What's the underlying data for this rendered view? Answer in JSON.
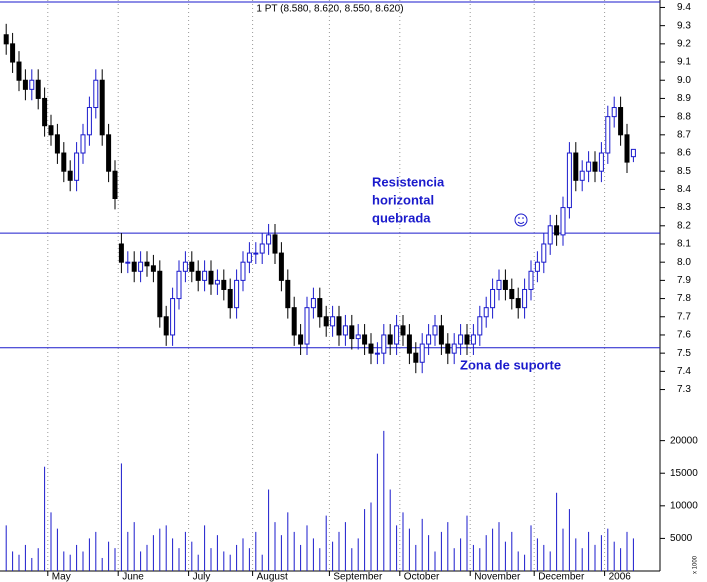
{
  "chart_data": {
    "type": "candlestick",
    "title": "1 PT (8.580, 8.620, 8.550, 8.620)",
    "annotations": [
      "Resistencia",
      "horizontal",
      "quebrada",
      "Zona de suporte"
    ],
    "volume_unit": "x 1000",
    "categories": [
      null,
      null,
      null,
      null,
      null,
      null,
      null,
      "May",
      null,
      null,
      null,
      null,
      null,
      null,
      null,
      null,
      null,
      null,
      "June",
      null,
      null,
      null,
      null,
      null,
      null,
      null,
      null,
      null,
      null,
      "July",
      null,
      null,
      null,
      null,
      null,
      null,
      null,
      null,
      null,
      "August",
      null,
      null,
      null,
      null,
      null,
      null,
      null,
      null,
      null,
      null,
      null,
      "September",
      null,
      null,
      null,
      null,
      null,
      null,
      null,
      null,
      null,
      null,
      "October",
      null,
      null,
      null,
      null,
      null,
      null,
      null,
      null,
      null,
      null,
      "November",
      null,
      null,
      null,
      null,
      null,
      null,
      null,
      null,
      null,
      "December",
      null,
      null,
      null,
      null,
      null,
      null,
      null,
      null,
      null,
      null,
      "2006",
      null,
      null,
      null,
      null
    ],
    "open": [
      9.25,
      9.2,
      9.1,
      9.0,
      8.95,
      9.0,
      8.9,
      8.75,
      8.7,
      8.6,
      8.5,
      8.45,
      8.6,
      8.7,
      8.85,
      9.0,
      8.7,
      8.5,
      8.1,
      8.0,
      8.0,
      7.95,
      8.0,
      7.98,
      7.95,
      7.7,
      7.6,
      7.8,
      7.95,
      8.0,
      7.95,
      7.9,
      7.95,
      7.88,
      7.9,
      7.85,
      7.75,
      7.9,
      8.0,
      8.05,
      8.05,
      8.1,
      8.15,
      8.05,
      7.9,
      7.75,
      7.6,
      7.55,
      7.75,
      7.8,
      7.7,
      7.65,
      7.7,
      7.6,
      7.65,
      7.58,
      7.6,
      7.55,
      7.5,
      7.5,
      7.6,
      7.55,
      7.65,
      7.6,
      7.5,
      7.45,
      7.55,
      7.6,
      7.65,
      7.55,
      7.5,
      7.55,
      7.6,
      7.55,
      7.6,
      7.7,
      7.75,
      7.85,
      7.9,
      7.85,
      7.8,
      7.75,
      7.85,
      7.95,
      8.0,
      8.1,
      8.2,
      8.15,
      8.3,
      8.6,
      8.45,
      8.5,
      8.55,
      8.5,
      8.6,
      8.8,
      8.85,
      8.7,
      8.58
    ],
    "high": [
      9.31,
      9.26,
      9.16,
      9.06,
      9.06,
      9.06,
      8.96,
      8.81,
      8.76,
      8.66,
      8.56,
      8.66,
      8.76,
      8.91,
      9.06,
      9.06,
      8.76,
      8.56,
      8.16,
      8.06,
      8.06,
      8.06,
      8.06,
      8.04,
      8.01,
      7.76,
      7.86,
      8.01,
      8.06,
      8.06,
      8.01,
      8.01,
      8.01,
      7.96,
      7.96,
      7.91,
      7.96,
      8.06,
      8.11,
      8.11,
      8.16,
      8.21,
      8.21,
      8.11,
      7.96,
      7.81,
      7.66,
      7.81,
      7.86,
      7.86,
      7.76,
      7.76,
      7.76,
      7.71,
      7.71,
      7.66,
      7.66,
      7.61,
      7.56,
      7.66,
      7.66,
      7.71,
      7.71,
      7.66,
      7.56,
      7.61,
      7.66,
      7.71,
      7.71,
      7.61,
      7.61,
      7.66,
      7.66,
      7.66,
      7.76,
      7.81,
      7.91,
      7.96,
      7.96,
      7.91,
      7.86,
      7.91,
      8.01,
      8.06,
      8.16,
      8.26,
      8.26,
      8.36,
      8.66,
      8.66,
      8.56,
      8.61,
      8.61,
      8.66,
      8.86,
      8.91,
      8.91,
      8.76,
      8.62
    ],
    "low": [
      9.14,
      9.04,
      8.94,
      8.89,
      8.89,
      8.84,
      8.69,
      8.64,
      8.54,
      8.44,
      8.39,
      8.39,
      8.54,
      8.64,
      8.79,
      8.64,
      8.44,
      8.29,
      7.94,
      7.94,
      7.89,
      7.89,
      7.92,
      7.89,
      7.64,
      7.54,
      7.54,
      7.74,
      7.89,
      7.89,
      7.84,
      7.84,
      7.82,
      7.82,
      7.79,
      7.69,
      7.69,
      7.84,
      7.94,
      7.99,
      7.99,
      8.04,
      7.99,
      7.84,
      7.69,
      7.54,
      7.49,
      7.49,
      7.69,
      7.64,
      7.59,
      7.59,
      7.54,
      7.54,
      7.52,
      7.52,
      7.49,
      7.44,
      7.44,
      7.44,
      7.49,
      7.49,
      7.54,
      7.44,
      7.39,
      7.39,
      7.49,
      7.54,
      7.49,
      7.44,
      7.44,
      7.49,
      7.49,
      7.49,
      7.54,
      7.64,
      7.69,
      7.79,
      7.79,
      7.74,
      7.69,
      7.69,
      7.79,
      7.89,
      7.94,
      8.04,
      8.09,
      8.09,
      8.24,
      8.39,
      8.39,
      8.44,
      8.44,
      8.44,
      8.54,
      8.74,
      8.64,
      8.49,
      8.55
    ],
    "close": [
      9.2,
      9.1,
      9.0,
      8.95,
      9.0,
      8.9,
      8.75,
      8.7,
      8.6,
      8.5,
      8.45,
      8.6,
      8.7,
      8.85,
      9.0,
      8.7,
      8.5,
      8.35,
      8.0,
      8.0,
      7.95,
      8.0,
      7.98,
      7.95,
      7.7,
      7.6,
      7.8,
      7.95,
      8.0,
      7.95,
      7.9,
      7.95,
      7.88,
      7.9,
      7.85,
      7.75,
      7.9,
      8.0,
      8.05,
      8.05,
      8.1,
      8.15,
      8.05,
      7.9,
      7.75,
      7.6,
      7.55,
      7.75,
      7.8,
      7.7,
      7.65,
      7.7,
      7.6,
      7.65,
      7.58,
      7.6,
      7.55,
      7.5,
      7.5,
      7.6,
      7.55,
      7.65,
      7.6,
      7.5,
      7.45,
      7.55,
      7.6,
      7.65,
      7.55,
      7.5,
      7.55,
      7.6,
      7.55,
      7.6,
      7.7,
      7.75,
      7.85,
      7.9,
      7.85,
      7.8,
      7.75,
      7.85,
      7.95,
      8.0,
      8.1,
      8.2,
      8.15,
      8.3,
      8.6,
      8.45,
      8.5,
      8.55,
      8.5,
      8.6,
      8.8,
      8.85,
      8.7,
      8.55,
      8.62
    ],
    "volume": [
      7000,
      3000,
      2500,
      4000,
      2000,
      3500,
      16000,
      9000,
      6500,
      3000,
      2500,
      4000,
      3000,
      5000,
      6000,
      2000,
      4500,
      3500,
      16500,
      6000,
      7500,
      3000,
      4000,
      5500,
      6500,
      7000,
      5000,
      3500,
      6000,
      4500,
      2500,
      7000,
      3500,
      5500,
      3000,
      2500,
      4000,
      5000,
      3500,
      6000,
      2500,
      12500,
      7500,
      5500,
      9000,
      6000,
      4000,
      7000,
      5000,
      3500,
      8500,
      4500,
      6000,
      7500,
      3500,
      5000,
      9500,
      10500,
      18000,
      21500,
      12500,
      7000,
      9000,
      6500,
      4000,
      8000,
      5500,
      3000,
      6000,
      7500,
      3500,
      5000,
      8500,
      4000,
      3500,
      5500,
      6500,
      7500,
      4500,
      6000,
      3000,
      2500,
      7000,
      5000,
      4000,
      3000,
      12000,
      6500,
      9500,
      5000,
      3500,
      6000,
      4000,
      5500,
      6500,
      4500,
      3500,
      6000,
      5000
    ],
    "ylim": [
      7.27,
      9.43
    ],
    "yticks": [
      7.3,
      7.4,
      7.5,
      7.6,
      7.7,
      7.8,
      7.9,
      {
        "value": 8,
        "label": "8.0"
      },
      8.1,
      8.2,
      8.3,
      8.4,
      8.5,
      8.6,
      8.7,
      8.8,
      8.9,
      {
        "value": 9,
        "label": "9.0"
      },
      9.1,
      9.2,
      9.3,
      9.4
    ],
    "y2lim": [
      0,
      27000
    ],
    "y2ticks": [
      5000,
      10000,
      15000,
      20000
    ],
    "hlines": [
      9.43,
      8.16,
      7.53
    ],
    "up_color": "#1a1acc",
    "down_color": "#000000",
    "line_color": "#1a1acc",
    "volume_color": "#1a1acc",
    "grid": true
  }
}
